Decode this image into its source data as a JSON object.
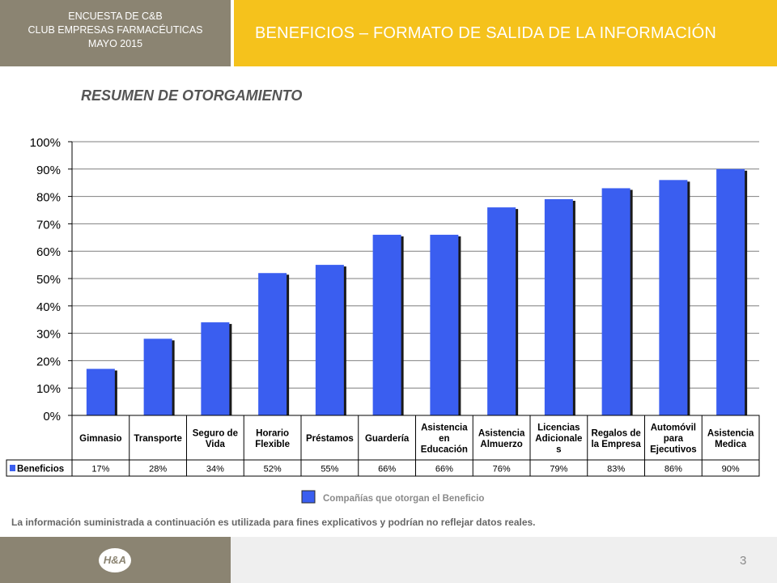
{
  "header": {
    "left_lines": [
      "ENCUESTA DE C&B",
      "CLUB EMPRESAS FARMACÉUTICAS",
      "MAYO 2015"
    ],
    "title": "BENEFICIOS – FORMATO DE SALIDA DE LA INFORMACIÓN"
  },
  "subtitle": "RESUMEN DE OTORGAMIENTO",
  "chart_data": {
    "type": "bar",
    "categories": [
      [
        "Gimnasio"
      ],
      [
        "Transporte"
      ],
      [
        "Seguro de",
        "Vida"
      ],
      [
        "Horario",
        "Flexible"
      ],
      [
        "Préstamos"
      ],
      [
        "Guardería"
      ],
      [
        "Asistencia",
        "en",
        "Educación"
      ],
      [
        "Asistencia",
        "Almuerzo"
      ],
      [
        "Licencias",
        "Adicionale",
        "s"
      ],
      [
        "Regalos de",
        "la Empresa"
      ],
      [
        "Automóvil",
        "para",
        "Ejecutivos"
      ],
      [
        "Asistencia",
        "Medica"
      ]
    ],
    "series": [
      {
        "name": "Beneficios",
        "values": [
          17,
          28,
          34,
          52,
          55,
          66,
          66,
          76,
          79,
          83,
          86,
          90
        ],
        "labels": [
          "17%",
          "28%",
          "34%",
          "52%",
          "55%",
          "66%",
          "66%",
          "76%",
          "79%",
          "83%",
          "86%",
          "90%"
        ]
      }
    ],
    "ylim": [
      0,
      100
    ],
    "yticks": [
      0,
      10,
      20,
      30,
      40,
      50,
      60,
      70,
      80,
      90,
      100
    ],
    "ytick_labels": [
      "0%",
      "10%",
      "20%",
      "30%",
      "40%",
      "50%",
      "60%",
      "70%",
      "80%",
      "90%",
      "100%"
    ],
    "grid": true,
    "legend": "bottom-center",
    "legend_text": "Compañías que otorgan el Beneficio",
    "bar_color": "#3a5ef0"
  },
  "disclaimer": "La información suministrada a continuación es utilizada para fines explicativos y podrían no reflejar datos reales.",
  "footer": {
    "logo_text": "H&A",
    "page_number": "3"
  }
}
